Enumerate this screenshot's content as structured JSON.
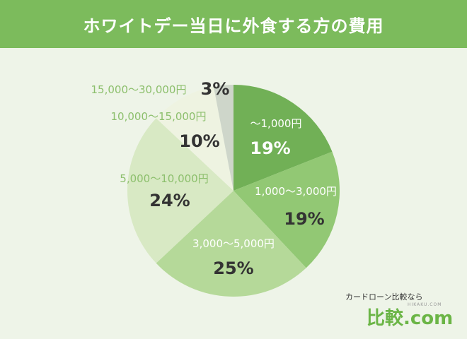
{
  "header": {
    "title": "ホワイトデー当日に外食する方の費用"
  },
  "chart_data": {
    "type": "pie",
    "title": "ホワイトデー当日に外食する方の費用",
    "start_angle_deg": 0,
    "direction": "clockwise",
    "slices": [
      {
        "label": "〜1,000円",
        "value": 19,
        "value_label": "19%",
        "color": "#71b056"
      },
      {
        "label": "1,000〜3,000円",
        "value": 19,
        "value_label": "19%",
        "color": "#92c874"
      },
      {
        "label": "3,000〜5,000円",
        "value": 25,
        "value_label": "25%",
        "color": "#b5d999"
      },
      {
        "label": "5,000〜10,000円",
        "value": 24,
        "value_label": "24%",
        "color": "#d8e9c4"
      },
      {
        "label": "10,000〜15,000円",
        "value": 10,
        "value_label": "10%",
        "color": "#eef3e1"
      },
      {
        "label": "15,000〜30,000円",
        "value": 3,
        "value_label": "3%",
        "color": "#ced6ca"
      }
    ],
    "colors": {
      "label_light": "#ffffff",
      "label_green": "#8cbf6c",
      "value_dark": "#333333"
    }
  },
  "brand": {
    "tagline": "カードローン比較なら",
    "name": "比較.com",
    "sub": "HIKAKU.COM"
  }
}
